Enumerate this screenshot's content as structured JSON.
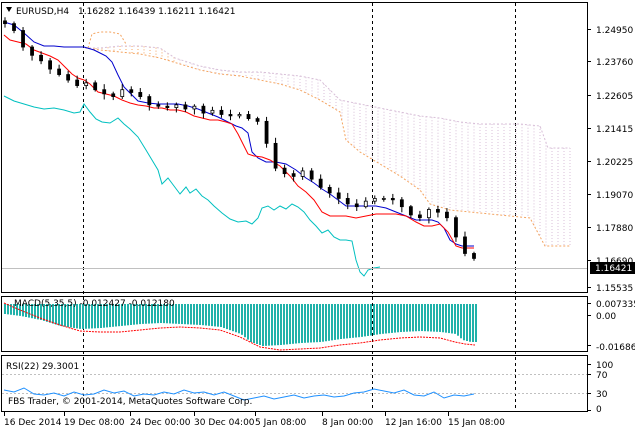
{
  "window": {
    "symbol_label": "EURUSD,H4",
    "ohlc_label": "1.16282 1.16439 1.16211 1.16421",
    "current_price_label": "1.16421"
  },
  "price_axis": {
    "ticks": [
      "1.24950",
      "1.23760",
      "1.22605",
      "1.21415",
      "1.20225",
      "1.19070",
      "1.17880",
      "1.16690",
      "1.15535"
    ]
  },
  "macd": {
    "label": "MACD(5,35,5) -0.012427 -0.012180",
    "ticks": [
      "0.007335",
      "0.00",
      "-0.016862"
    ]
  },
  "rsi": {
    "label": "RSI(22) 29.3001",
    "ticks": [
      "100",
      "70",
      "30",
      "0"
    ]
  },
  "copyright": "FBS Trader, © 2001-2014, MetaQuotes Software Corp.",
  "time_axis": {
    "labels": [
      "16 Dec 2014",
      "19 Dec 08:00",
      "24 Dec 00:00",
      "30 Dec 04:00",
      "5 Jan 08:00",
      "8 Jan 00:00",
      "12 Jan 16:00",
      "15 Jan 08:00"
    ]
  },
  "colors": {
    "candles": "#000000",
    "tenkan": "#ff0000",
    "kijun": "#0000cd",
    "chikou": "#00c0c0",
    "kumo_a": "#f4a460",
    "kumo_b": "#d8bfd8",
    "macd_hist": "#20b2aa",
    "macd_signal": "#ff0000",
    "rsi_line": "#1e90ff",
    "price_line": "#c0c0c0"
  },
  "chart_data": {
    "type": "candlestick",
    "symbol": "EURUSD",
    "timeframe": "H4",
    "last": {
      "open": 1.16282,
      "high": 1.16439,
      "low": 1.16211,
      "close": 1.16421
    },
    "ylim": [
      1.152,
      1.257
    ],
    "close_path": [
      1.2495,
      1.247,
      1.241,
      1.238,
      1.236,
      1.233,
      1.231,
      1.229,
      1.227,
      1.228,
      1.2255,
      1.224,
      1.223,
      1.2255,
      1.2245,
      1.223,
      1.22,
      1.2195,
      1.219,
      1.22,
      1.2185,
      1.2195,
      1.217,
      1.218,
      1.2165,
      1.216,
      1.2165,
      1.215,
      1.214,
      1.206,
      1.197,
      1.195,
      1.194,
      1.196,
      1.193,
      1.19,
      1.188,
      1.186,
      1.184,
      1.183,
      1.185,
      1.186,
      1.186,
      1.1855,
      1.183,
      1.18,
      1.179,
      1.182,
      1.181,
      1.179,
      1.172,
      1.166,
      1.1642
    ],
    "macd_ticks": [
      0.007335,
      0.0,
      -0.016862
    ],
    "rsi_levels": [
      70,
      30
    ],
    "rsi_value": 29.3001,
    "macd_value": -0.012427,
    "macd_signal_value": -0.01218
  }
}
